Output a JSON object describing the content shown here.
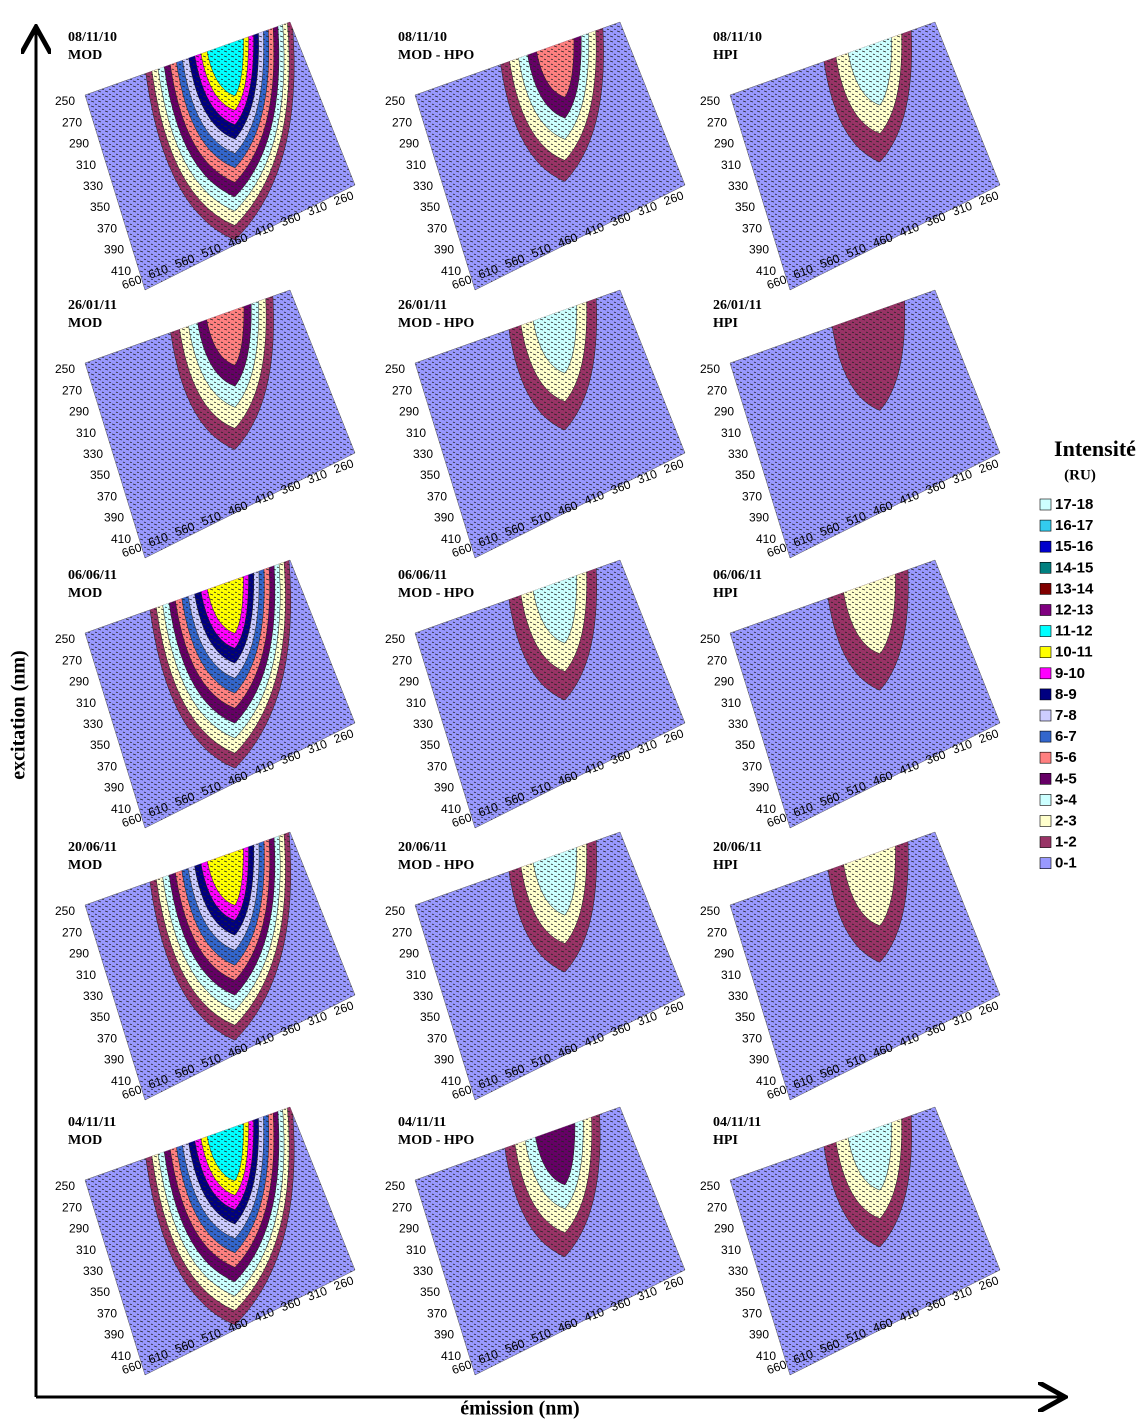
{
  "axes": {
    "y_title": "excitation (nm)",
    "x_title": "émission (nm)"
  },
  "excitation_ticks": [
    "250",
    "270",
    "290",
    "310",
    "330",
    "350",
    "370",
    "390",
    "410"
  ],
  "emission_ticks": [
    "660",
    "610",
    "560",
    "510",
    "460",
    "410",
    "360",
    "310",
    "260"
  ],
  "legend": {
    "title": "Intensité",
    "unit": "(RU)",
    "items": [
      {
        "label": "17-18",
        "color": "#ccffff"
      },
      {
        "label": "16-17",
        "color": "#33ccee"
      },
      {
        "label": "15-16",
        "color": "#0000cc"
      },
      {
        "label": "14-15",
        "color": "#008080"
      },
      {
        "label": "13-14",
        "color": "#800000"
      },
      {
        "label": "12-13",
        "color": "#800080"
      },
      {
        "label": "11-12",
        "color": "#00ffff"
      },
      {
        "label": "10-11",
        "color": "#ffff00"
      },
      {
        "label": "9-10",
        "color": "#ff00ff"
      },
      {
        "label": "8-9",
        "color": "#000080"
      },
      {
        "label": "7-8",
        "color": "#ccccff"
      },
      {
        "label": "6-7",
        "color": "#3366cc"
      },
      {
        "label": "5-6",
        "color": "#ff8080"
      },
      {
        "label": "4-5",
        "color": "#660066"
      },
      {
        "label": "3-4",
        "color": "#ccffff"
      },
      {
        "label": "2-3",
        "color": "#ffffcc"
      },
      {
        "label": "1-2",
        "color": "#993366"
      },
      {
        "label": "0-1",
        "color": "#9999ff"
      }
    ]
  },
  "panels": [
    {
      "date": "08/11/10",
      "label": "MOD",
      "peak": 11
    },
    {
      "date": "08/11/10",
      "label": "MOD - HPO",
      "peak": 5
    },
    {
      "date": "08/11/10",
      "label": "HPI",
      "peak": 3
    },
    {
      "date": "26/01/11",
      "label": "MOD",
      "peak": 5
    },
    {
      "date": "26/01/11",
      "label": "MOD - HPO",
      "peak": 3
    },
    {
      "date": "26/01/11",
      "label": "HPI",
      "peak": 1
    },
    {
      "date": "06/06/11",
      "label": "MOD",
      "peak": 10
    },
    {
      "date": "06/06/11",
      "label": "MOD - HPO",
      "peak": 3
    },
    {
      "date": "06/06/11",
      "label": "HPI",
      "peak": 2
    },
    {
      "date": "20/06/11",
      "label": "MOD",
      "peak": 10
    },
    {
      "date": "20/06/11",
      "label": "MOD - HPO",
      "peak": 3
    },
    {
      "date": "20/06/11",
      "label": "HPI",
      "peak": 2
    },
    {
      "date": "04/11/11",
      "label": "MOD",
      "peak": 11
    },
    {
      "date": "04/11/11",
      "label": "MOD - HPO",
      "peak": 4
    },
    {
      "date": "04/11/11",
      "label": "HPI",
      "peak": 3
    }
  ]
}
